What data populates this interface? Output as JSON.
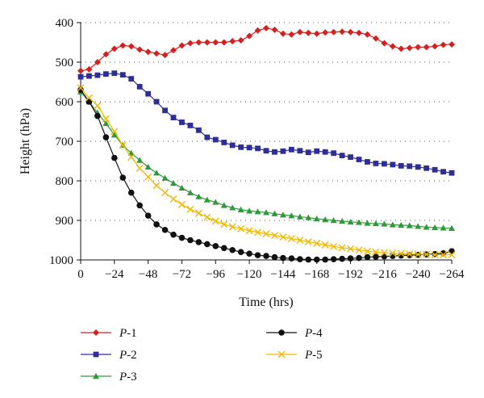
{
  "chart_data": {
    "type": "line",
    "xlabel": "Time (hrs)",
    "ylabel": "Height (hPa)",
    "xlim": [
      0,
      -264
    ],
    "ylim": [
      400,
      1000
    ],
    "y_inverted": true,
    "x_ticks": [
      0,
      -24,
      -48,
      -72,
      -96,
      -120,
      -144,
      -168,
      -192,
      -216,
      -240,
      -264
    ],
    "x_tick_labels": [
      "0",
      "−24",
      "−48",
      "−72",
      "−96",
      "−120",
      "−144",
      "−168",
      "−192",
      "−216",
      "−240",
      "−264"
    ],
    "y_ticks": [
      400,
      500,
      600,
      700,
      800,
      900,
      1000
    ],
    "grid": "horizontal dotted",
    "legend_position": "bottom",
    "x": [
      0,
      -6,
      -12,
      -18,
      -24,
      -30,
      -36,
      -42,
      -48,
      -54,
      -60,
      -66,
      -72,
      -78,
      -84,
      -90,
      -96,
      -102,
      -108,
      -114,
      -120,
      -126,
      -132,
      -138,
      -144,
      -150,
      -156,
      -162,
      -168,
      -174,
      -180,
      -186,
      -192,
      -198,
      -204,
      -210,
      -216,
      -222,
      -228,
      -234,
      -240,
      -246,
      -252,
      -258,
      -264
    ],
    "series": [
      {
        "name_prefix": "P",
        "name_suffix": "-1",
        "color": "#d62020",
        "marker": "diamond",
        "values": [
          522,
          518,
          500,
          480,
          466,
          458,
          460,
          468,
          474,
          478,
          482,
          470,
          458,
          452,
          450,
          450,
          450,
          450,
          447,
          445,
          434,
          420,
          414,
          418,
          428,
          430,
          424,
          426,
          428,
          425,
          424,
          423,
          424,
          426,
          430,
          440,
          452,
          460,
          466,
          464,
          462,
          462,
          460,
          456,
          455
        ]
      },
      {
        "name_prefix": "P",
        "name_suffix": "-2",
        "color": "#2e2e9a",
        "marker": "square",
        "values": [
          537,
          535,
          533,
          530,
          528,
          532,
          542,
          562,
          580,
          600,
          622,
          640,
          652,
          660,
          672,
          690,
          696,
          703,
          710,
          715,
          716,
          718,
          724,
          727,
          725,
          721,
          724,
          728,
          725,
          727,
          730,
          736,
          740,
          746,
          752,
          756,
          757,
          759,
          762,
          763,
          765,
          768,
          772,
          777,
          780
        ]
      },
      {
        "name_prefix": "P",
        "name_suffix": "-3",
        "color": "#2e9a3a",
        "marker": "triangle",
        "values": [
          575,
          600,
          628,
          655,
          684,
          710,
          730,
          748,
          765,
          780,
          793,
          806,
          818,
          830,
          840,
          848,
          854,
          862,
          868,
          873,
          876,
          878,
          880,
          883,
          886,
          888,
          891,
          893,
          896,
          898,
          900,
          902,
          904,
          905,
          907,
          908,
          909,
          911,
          912,
          913,
          915,
          917,
          918,
          919,
          920
        ]
      },
      {
        "name_prefix": "P",
        "name_suffix": "-4",
        "color": "#111111",
        "marker": "circle",
        "values": [
          570,
          600,
          636,
          690,
          742,
          792,
          830,
          862,
          888,
          910,
          924,
          936,
          944,
          950,
          955,
          960,
          965,
          970,
          975,
          980,
          984,
          988,
          990,
          993,
          995,
          996,
          998,
          999,
          999,
          999,
          998,
          997,
          996,
          995,
          993,
          992,
          991,
          990,
          989,
          988,
          987,
          986,
          985,
          983,
          978
        ]
      },
      {
        "name_prefix": "P",
        "name_suffix": "-5",
        "color": "#f0b800",
        "marker": "cross",
        "values": [
          565,
          590,
          610,
          643,
          675,
          710,
          740,
          768,
          790,
          812,
          830,
          846,
          860,
          872,
          882,
          892,
          902,
          910,
          916,
          921,
          926,
          930,
          934,
          938,
          942,
          946,
          950,
          954,
          958,
          962,
          966,
          969,
          972,
          975,
          978,
          980,
          982,
          983,
          984,
          985,
          986,
          986,
          987,
          987,
          987
        ]
      }
    ]
  }
}
